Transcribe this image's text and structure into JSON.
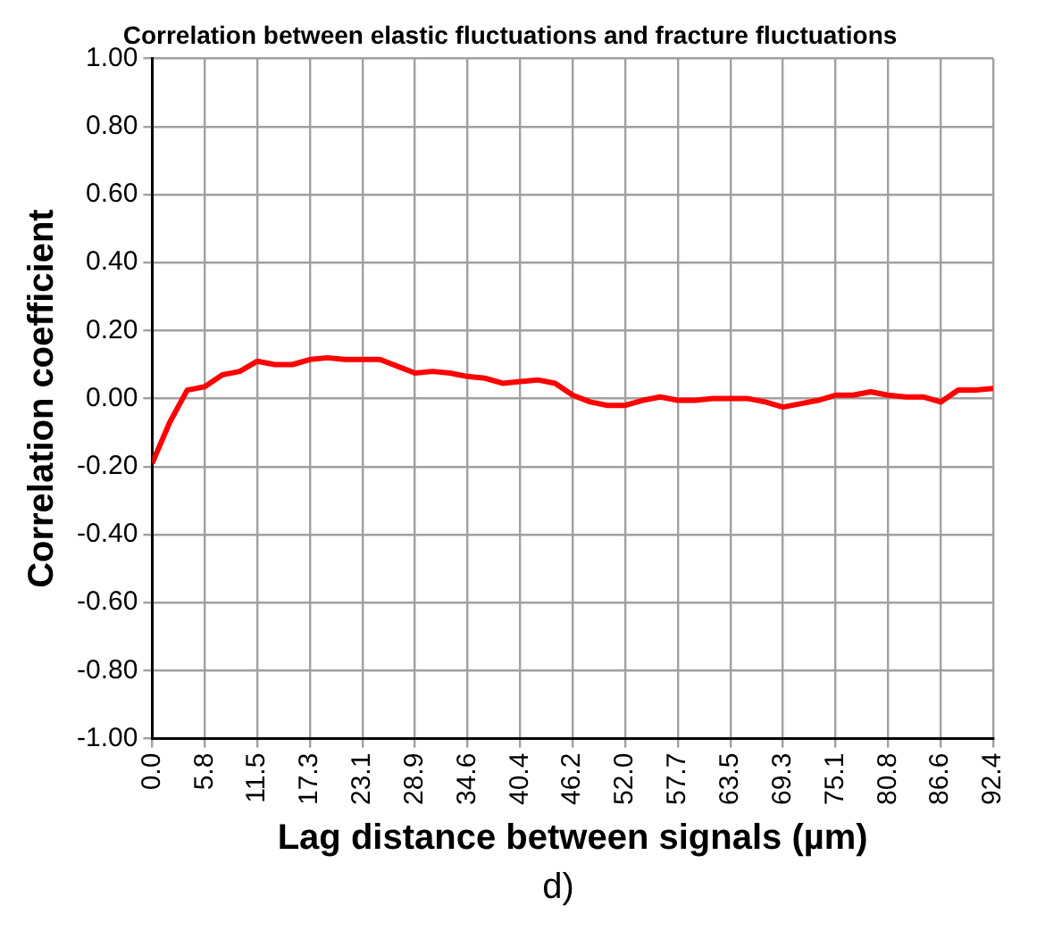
{
  "chart_data": {
    "type": "line",
    "title": "Correlation between elastic fluctuations and fracture fluctuations",
    "xlabel": "Lag distance between signals (µm)",
    "ylabel": "Correlation coefficient",
    "annotations": [
      "d)"
    ],
    "x": [
      0,
      1.925,
      3.85,
      5.775,
      7.7,
      9.625,
      11.55,
      13.475,
      15.4,
      17.325,
      19.25,
      21.175,
      23.1,
      25.025,
      26.95,
      28.875,
      30.8,
      32.725,
      34.65,
      36.575,
      38.5,
      40.425,
      42.35,
      44.275,
      46.2,
      48.125,
      50.05,
      51.975,
      53.9,
      55.825,
      57.75,
      59.675,
      61.6,
      63.525,
      65.45,
      67.375,
      69.3,
      71.225,
      73.15,
      75.075,
      77,
      78.925,
      80.85,
      82.775,
      84.7,
      86.625,
      88.55,
      90.475,
      92.4
    ],
    "series": [
      {
        "color": "#ff0000",
        "values": [
          -0.19,
          -0.07,
          0.025,
          0.035,
          0.07,
          0.08,
          0.11,
          0.1,
          0.1,
          0.115,
          0.12,
          0.115,
          0.115,
          0.115,
          0.095,
          0.075,
          0.08,
          0.075,
          0.065,
          0.06,
          0.045,
          0.05,
          0.055,
          0.045,
          0.01,
          -0.01,
          -0.02,
          -0.02,
          -0.005,
          0.005,
          -0.005,
          -0.005,
          0,
          0,
          0,
          -0.01,
          -0.025,
          -0.015,
          -0.005,
          0.01,
          0.01,
          0.02,
          0.01,
          0.005,
          0.005,
          -0.01,
          0.025,
          0.025,
          0.03
        ]
      }
    ],
    "xlim": [
      0,
      92.4
    ],
    "xticks": [
      {
        "value": 0,
        "label": "0.0"
      },
      {
        "value": 5.775,
        "label": "5.8"
      },
      {
        "value": 11.55,
        "label": "11.5"
      },
      {
        "value": 17.325,
        "label": "17.3"
      },
      {
        "value": 23.1,
        "label": "23.1"
      },
      {
        "value": 28.875,
        "label": "28.9"
      },
      {
        "value": 34.65,
        "label": "34.6"
      },
      {
        "value": 40.425,
        "label": "40.4"
      },
      {
        "value": 46.2,
        "label": "46.2"
      },
      {
        "value": 51.975,
        "label": "52.0"
      },
      {
        "value": 57.75,
        "label": "57.7"
      },
      {
        "value": 63.525,
        "label": "63.5"
      },
      {
        "value": 69.3,
        "label": "69.3"
      },
      {
        "value": 75.075,
        "label": "75.1"
      },
      {
        "value": 80.85,
        "label": "80.8"
      },
      {
        "value": 86.625,
        "label": "86.6"
      },
      {
        "value": 92.4,
        "label": "92.4"
      }
    ],
    "ylim": [
      -1,
      1
    ],
    "yticks": [
      {
        "value": -1,
        "label": "-1.00"
      },
      {
        "value": -0.8,
        "label": "-0.80"
      },
      {
        "value": -0.6,
        "label": "-0.60"
      },
      {
        "value": -0.4,
        "label": "-0.40"
      },
      {
        "value": -0.2,
        "label": "-0.20"
      },
      {
        "value": 0,
        "label": "0.00"
      },
      {
        "value": 0.2,
        "label": "0.20"
      },
      {
        "value": 0.4,
        "label": "0.40"
      },
      {
        "value": 0.6,
        "label": "0.60"
      },
      {
        "value": 0.8,
        "label": "0.80"
      },
      {
        "value": 1,
        "label": "1.00"
      }
    ],
    "grid": true,
    "marker": "none",
    "line_style": "solid"
  }
}
